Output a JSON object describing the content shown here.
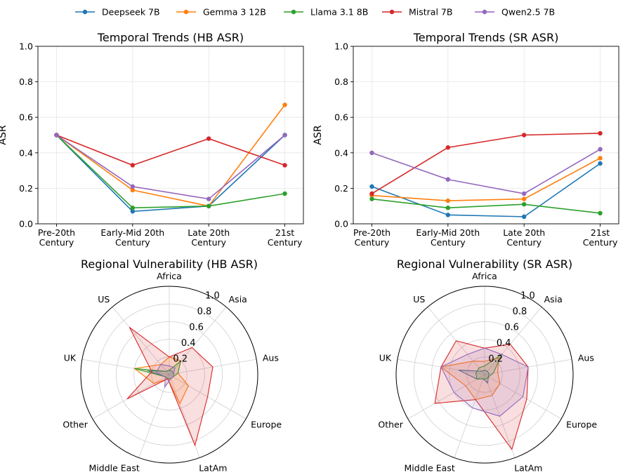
{
  "legend": [
    "Deepseek 7B",
    "Gemma 3 12B",
    "Llama 3.1 8B",
    "Mistral 7B",
    "Qwen2.5 7B"
  ],
  "colors": [
    "#1f77b4",
    "#ff7f0e",
    "#2ca02c",
    "#d62728",
    "#9467bd"
  ],
  "chart_data": [
    {
      "type": "line",
      "title": "Temporal Trends (HB ASR)",
      "ylabel": "ASR",
      "categories": [
        "Pre-20th\nCentury",
        "Early-Mid 20th\nCentury",
        "Late 20th\nCentury",
        "21st\nCentury"
      ],
      "ylim": [
        0,
        1.0
      ],
      "yticks": [
        "0.0",
        "0.2",
        "0.4",
        "0.6",
        "0.8",
        "1.0"
      ],
      "series": [
        {
          "name": "Deepseek 7B",
          "values": [
            0.5,
            0.07,
            0.1,
            0.5
          ]
        },
        {
          "name": "Gemma 3 12B",
          "values": [
            0.5,
            0.19,
            0.1,
            0.67
          ]
        },
        {
          "name": "Llama 3.1 8B",
          "values": [
            0.5,
            0.09,
            0.1,
            0.17
          ]
        },
        {
          "name": "Mistral 7B",
          "values": [
            0.5,
            0.33,
            0.48,
            0.33
          ]
        },
        {
          "name": "Qwen2.5 7B",
          "values": [
            0.5,
            0.21,
            0.14,
            0.5
          ]
        }
      ]
    },
    {
      "type": "line",
      "title": "Temporal Trends (SR ASR)",
      "ylabel": "ASR",
      "categories": [
        "Pre-20th\nCentury",
        "Early-Mid 20th\nCentury",
        "Late 20th\nCentury",
        "21st\nCentury"
      ],
      "ylim": [
        0,
        1.0
      ],
      "yticks": [
        "0.0",
        "0.2",
        "0.4",
        "0.6",
        "0.8",
        "1.0"
      ],
      "series": [
        {
          "name": "Deepseek 7B",
          "values": [
            0.21,
            0.05,
            0.04,
            0.34
          ]
        },
        {
          "name": "Gemma 3 12B",
          "values": [
            0.16,
            0.13,
            0.14,
            0.37
          ]
        },
        {
          "name": "Llama 3.1 8B",
          "values": [
            0.14,
            0.09,
            0.11,
            0.06
          ]
        },
        {
          "name": "Mistral 7B",
          "values": [
            0.17,
            0.43,
            0.5,
            0.51
          ]
        },
        {
          "name": "Qwen2.5 7B",
          "values": [
            0.4,
            0.25,
            0.17,
            0.42
          ]
        }
      ]
    },
    {
      "type": "radar",
      "title": "Regional Vulnerability (HB ASR)",
      "categories": [
        "Africa",
        "Asia",
        "Aus",
        "Europe",
        "LatAm",
        "Middle East",
        "Other",
        "UK",
        "US"
      ],
      "rlim": [
        0,
        1.0
      ],
      "rticks": [
        "0.2",
        "0.4",
        "0.6",
        "0.8",
        "1.0"
      ],
      "series": [
        {
          "name": "Deepseek 7B",
          "values": [
            0.05,
            0.05,
            0.05,
            0.05,
            0.05,
            0.05,
            0.05,
            0.25,
            0.05
          ]
        },
        {
          "name": "Gemma 3 12B",
          "values": [
            0.2,
            0.2,
            0.1,
            0.25,
            0.35,
            0.05,
            0.2,
            0.4,
            0.15
          ]
        },
        {
          "name": "Llama 3.1 8B",
          "values": [
            0.05,
            0.2,
            0.1,
            0.05,
            0.05,
            0.05,
            0.05,
            0.4,
            0.05
          ]
        },
        {
          "name": "Mistral 7B",
          "values": [
            0.2,
            0.4,
            0.5,
            0.5,
            0.85,
            0.05,
            0.55,
            0.2,
            0.7
          ]
        },
        {
          "name": "Qwen2.5 7B",
          "values": [
            0.1,
            0.1,
            0.05,
            0.05,
            0.05,
            0.15,
            0.05,
            0.15,
            0.15
          ]
        }
      ]
    },
    {
      "type": "radar",
      "title": "Regional Vulnerability (SR ASR)",
      "categories": [
        "Africa",
        "Asia",
        "Aus",
        "Europe",
        "LatAm",
        "Middle East",
        "Other",
        "UK",
        "US"
      ],
      "rlim": [
        0,
        1.0
      ],
      "rticks": [
        "0.2",
        "0.4",
        "0.6",
        "0.8",
        "1.0"
      ],
      "series": [
        {
          "name": "Deepseek 7B",
          "values": [
            0.05,
            0.05,
            0.05,
            0.05,
            0.1,
            0.05,
            0.1,
            0.3,
            0.05
          ]
        },
        {
          "name": "Gemma 3 12B",
          "values": [
            0.15,
            0.25,
            0.15,
            0.2,
            0.25,
            0.3,
            0.25,
            0.5,
            0.2
          ]
        },
        {
          "name": "Llama 3.1 8B",
          "values": [
            0.1,
            0.3,
            0.1,
            0.05,
            0.05,
            0.05,
            0.1,
            0.1,
            0.1
          ]
        },
        {
          "name": "Mistral 7B",
          "values": [
            0.3,
            0.45,
            0.5,
            0.55,
            0.9,
            0.3,
            0.65,
            0.5,
            0.5
          ]
        },
        {
          "name": "Qwen2.5 7B",
          "values": [
            0.3,
            0.3,
            0.5,
            0.5,
            0.5,
            0.4,
            0.4,
            0.5,
            0.3
          ]
        }
      ]
    }
  ]
}
